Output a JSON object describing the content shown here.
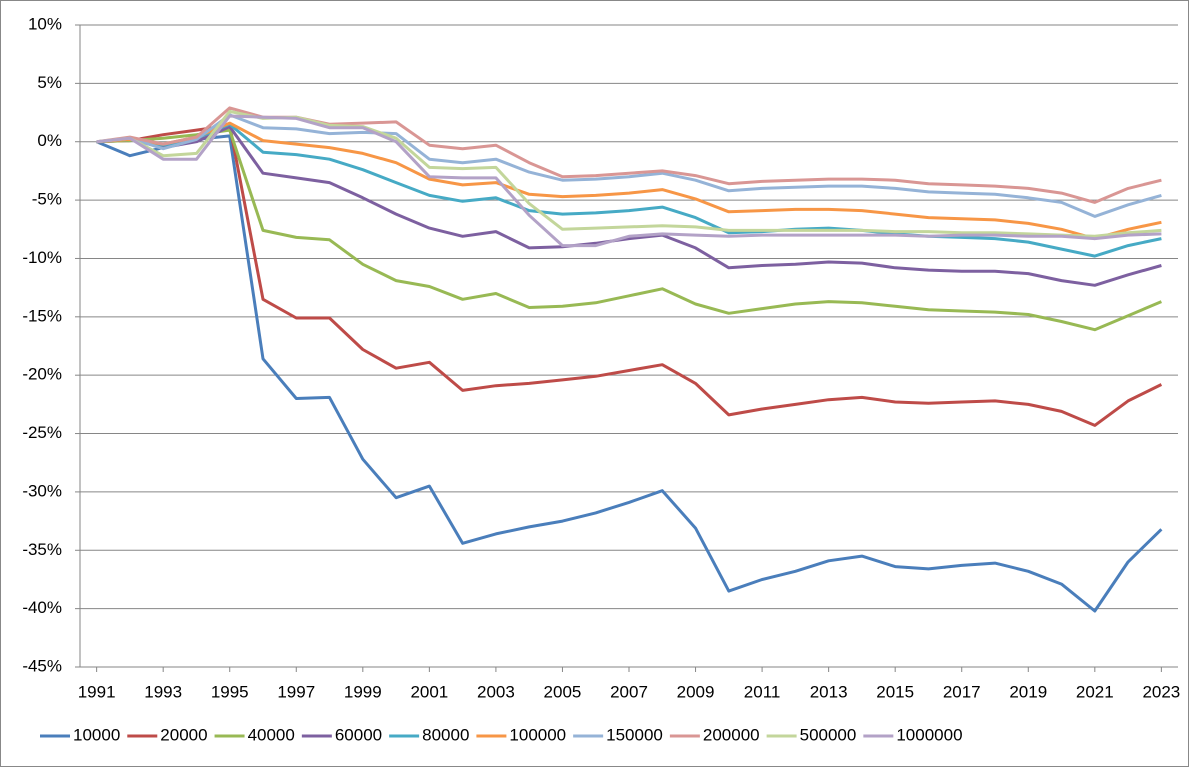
{
  "chart_data": {
    "type": "line",
    "x": [
      1991,
      1992,
      1993,
      1994,
      1995,
      1996,
      1997,
      1998,
      1999,
      2000,
      2001,
      2002,
      2003,
      2004,
      2005,
      2006,
      2007,
      2008,
      2009,
      2010,
      2011,
      2012,
      2013,
      2014,
      2015,
      2016,
      2017,
      2018,
      2019,
      2020,
      2021,
      2022,
      2023
    ],
    "xlim": [
      1990.5,
      2023.5
    ],
    "xticks": [
      1991,
      1993,
      1995,
      1997,
      1999,
      2001,
      2003,
      2005,
      2007,
      2009,
      2011,
      2013,
      2015,
      2017,
      2019,
      2021,
      2023
    ],
    "ylim": [
      -45,
      10
    ],
    "yticks": [
      {
        "value": 10,
        "label": "10%"
      },
      {
        "value": 5,
        "label": "5%"
      },
      {
        "value": 0,
        "label": "0%"
      },
      {
        "value": -5,
        "label": "-5%"
      },
      {
        "value": -10,
        "label": "-10%"
      },
      {
        "value": -15,
        "label": "-15%"
      },
      {
        "value": -20,
        "label": "-20%"
      },
      {
        "value": -25,
        "label": "-25%"
      },
      {
        "value": -30,
        "label": "-30%"
      },
      {
        "value": -35,
        "label": "-35%"
      },
      {
        "value": -40,
        "label": "-40%"
      },
      {
        "value": -45,
        "label": "-45%"
      }
    ],
    "grid": true,
    "legend": "bottom",
    "series": [
      {
        "name": "10000",
        "color": "#4a7ebb",
        "values": [
          0,
          -1.2,
          -0.5,
          0.2,
          0.5,
          -18.6,
          -22,
          -21.9,
          -27.2,
          -30.5,
          -29.5,
          -34.4,
          -33.6,
          -33,
          -32.5,
          -31.8,
          -30.9,
          -29.9,
          -33.1,
          -38.5,
          -37.5,
          -36.8,
          -35.9,
          -35.5,
          -36.4,
          -36.6,
          -36.3,
          -36.1,
          -36.8,
          -37.9,
          -40.2,
          -36,
          -33.2
        ]
      },
      {
        "name": "20000",
        "color": "#be4b48",
        "values": [
          0,
          0.1,
          0.6,
          1.0,
          1.4,
          -13.5,
          -15.1,
          -15.1,
          -17.8,
          -19.4,
          -18.9,
          -21.3,
          -20.9,
          -20.7,
          -20.4,
          -20.1,
          -19.6,
          -19.1,
          -20.7,
          -23.4,
          -22.9,
          -22.5,
          -22.1,
          -21.9,
          -22.3,
          -22.4,
          -22.3,
          -22.2,
          -22.5,
          -23.1,
          -24.3,
          -22.2,
          -20.8
        ]
      },
      {
        "name": "40000",
        "color": "#98b954",
        "values": [
          0,
          0.1,
          0.3,
          0.6,
          1.0,
          -7.6,
          -8.2,
          -8.4,
          -10.5,
          -11.9,
          -12.4,
          -13.5,
          -13,
          -14.2,
          -14.1,
          -13.8,
          -13.2,
          -12.6,
          -13.9,
          -14.7,
          -14.3,
          -13.9,
          -13.7,
          -13.8,
          -14.1,
          -14.4,
          -14.5,
          -14.6,
          -14.8,
          -15.4,
          -16.1,
          -14.9,
          -13.7
        ]
      },
      {
        "name": "60000",
        "color": "#7d60a0",
        "values": [
          0,
          0.2,
          -0.5,
          0,
          1.3,
          -2.7,
          -3.1,
          -3.5,
          -4.8,
          -6.2,
          -7.4,
          -8.1,
          -7.7,
          -9.1,
          -9.0,
          -8.7,
          -8.3,
          -8.0,
          -9.1,
          -10.8,
          -10.6,
          -10.5,
          -10.3,
          -10.4,
          -10.8,
          -11.0,
          -11.1,
          -11.1,
          -11.3,
          -11.9,
          -12.3,
          -11.4,
          -10.6
        ]
      },
      {
        "name": "80000",
        "color": "#46aac5",
        "values": [
          0,
          0.2,
          -0.3,
          0.3,
          1.5,
          -0.9,
          -1.1,
          -1.5,
          -2.4,
          -3.5,
          -4.6,
          -5.1,
          -4.8,
          -5.9,
          -6.2,
          -6.1,
          -5.9,
          -5.6,
          -6.5,
          -7.8,
          -7.7,
          -7.5,
          -7.4,
          -7.6,
          -7.9,
          -8.1,
          -8.2,
          -8.3,
          -8.6,
          -9.2,
          -9.8,
          -8.9,
          -8.3
        ]
      },
      {
        "name": "100000",
        "color": "#f79646",
        "values": [
          0,
          0.2,
          -0.2,
          0.4,
          1.6,
          0.1,
          -0.2,
          -0.5,
          -1.0,
          -1.8,
          -3.2,
          -3.7,
          -3.5,
          -4.5,
          -4.7,
          -4.6,
          -4.4,
          -4.1,
          -4.9,
          -6.0,
          -5.9,
          -5.8,
          -5.8,
          -5.9,
          -6.2,
          -6.5,
          -6.6,
          -6.7,
          -7.0,
          -7.5,
          -8.3,
          -7.5,
          -6.9
        ]
      },
      {
        "name": "150000",
        "color": "#95b3d7",
        "values": [
          0,
          0.3,
          -0.6,
          0.2,
          2.3,
          1.2,
          1.1,
          0.7,
          0.8,
          0.7,
          -1.5,
          -1.8,
          -1.5,
          -2.6,
          -3.3,
          -3.2,
          -3.0,
          -2.7,
          -3.3,
          -4.2,
          -4.0,
          -3.9,
          -3.8,
          -3.8,
          -4.0,
          -4.3,
          -4.4,
          -4.5,
          -4.8,
          -5.2,
          -6.4,
          -5.4,
          -4.6
        ]
      },
      {
        "name": "200000",
        "color": "#d99694",
        "values": [
          0,
          0.4,
          -0.2,
          0.4,
          2.9,
          2.1,
          2.1,
          1.5,
          1.6,
          1.7,
          -0.3,
          -0.6,
          -0.3,
          -1.8,
          -3.0,
          -2.9,
          -2.7,
          -2.5,
          -2.9,
          -3.6,
          -3.4,
          -3.3,
          -3.2,
          -3.2,
          -3.3,
          -3.6,
          -3.7,
          -3.8,
          -4.0,
          -4.4,
          -5.2,
          -4.0,
          -3.3
        ]
      },
      {
        "name": "500000",
        "color": "#c3d69b",
        "values": [
          0,
          0.3,
          -1.2,
          -1.0,
          2.6,
          2.0,
          2.1,
          1.4,
          1.3,
          0.3,
          -2.2,
          -2.3,
          -2.2,
          -5.3,
          -7.5,
          -7.4,
          -7.3,
          -7.2,
          -7.3,
          -7.6,
          -7.6,
          -7.6,
          -7.6,
          -7.6,
          -7.7,
          -7.7,
          -7.8,
          -7.8,
          -7.9,
          -8.0,
          -8.1,
          -7.8,
          -7.6
        ]
      },
      {
        "name": "1000000",
        "color": "#b3a2c7",
        "values": [
          0,
          0.3,
          -1.5,
          -1.5,
          2.2,
          2.1,
          2.0,
          1.2,
          1.2,
          0.0,
          -3.0,
          -3.1,
          -3.1,
          -6.3,
          -8.9,
          -8.9,
          -8.1,
          -7.9,
          -8.0,
          -8.1,
          -8.0,
          -8.0,
          -8.0,
          -8.0,
          -8.0,
          -8.1,
          -8.0,
          -8.0,
          -8.1,
          -8.1,
          -8.3,
          -8.0,
          -7.9
        ]
      }
    ]
  }
}
